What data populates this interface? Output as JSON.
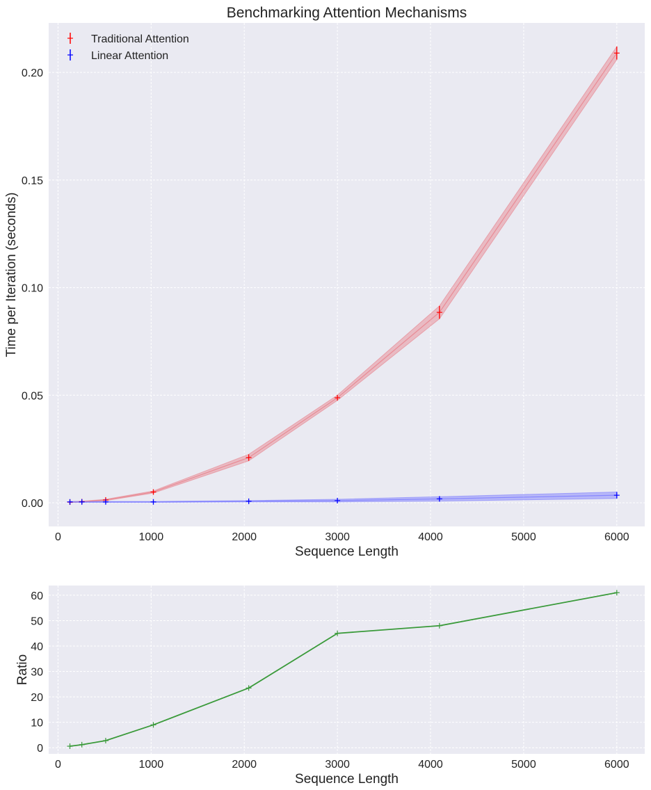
{
  "chart_data": [
    {
      "type": "line",
      "title": "Benchmarking Attention Mechanisms",
      "xlabel": "Sequence Length",
      "ylabel": "Time per Iteration (seconds)",
      "xlim": [
        -100,
        6300
      ],
      "ylim": [
        -0.011,
        0.223
      ],
      "x_ticks": [
        0,
        1000,
        2000,
        3000,
        4000,
        5000,
        6000
      ],
      "x_tick_labels": [
        "0",
        "1000",
        "2000",
        "3000",
        "4000",
        "5000",
        "6000"
      ],
      "y_ticks": [
        0.0,
        0.05,
        0.1,
        0.15,
        0.2
      ],
      "y_tick_labels": [
        "0.00",
        "0.05",
        "0.10",
        "0.15",
        "0.20"
      ],
      "grid": true,
      "legend_position": "top-left",
      "x": [
        128,
        256,
        512,
        1024,
        2048,
        3000,
        4096,
        6000
      ],
      "series": [
        {
          "name": "Traditional Attention",
          "color": "#ff0000",
          "band_color": "#e8808a",
          "values": [
            0.0003,
            0.0005,
            0.0013,
            0.005,
            0.021,
            0.0488,
            0.0885,
            0.209
          ],
          "errors": [
            0.0002,
            0.0002,
            0.0003,
            0.0005,
            0.0015,
            0.0012,
            0.003,
            0.003
          ]
        },
        {
          "name": "Linear Attention",
          "color": "#0000ff",
          "band_color": "#7b7bff",
          "values": [
            0.0004,
            0.0004,
            0.0004,
            0.0004,
            0.0007,
            0.001,
            0.0018,
            0.0035
          ],
          "errors": [
            0.0002,
            0.0002,
            0.0002,
            0.0002,
            0.0003,
            0.0006,
            0.001,
            0.0015
          ]
        }
      ]
    },
    {
      "type": "line",
      "title": "",
      "xlabel": "Sequence Length",
      "ylabel": "Ratio",
      "xlim": [
        -100,
        6300
      ],
      "ylim": [
        -2.4,
        63.8
      ],
      "x_ticks": [
        0,
        1000,
        2000,
        3000,
        4000,
        5000,
        6000
      ],
      "x_tick_labels": [
        "0",
        "1000",
        "2000",
        "3000",
        "4000",
        "5000",
        "6000"
      ],
      "y_ticks": [
        0,
        10,
        20,
        30,
        40,
        50,
        60
      ],
      "y_tick_labels": [
        "0",
        "10",
        "20",
        "30",
        "40",
        "50",
        "60"
      ],
      "grid": true,
      "x": [
        128,
        256,
        512,
        1024,
        2048,
        3000,
        4096,
        6000
      ],
      "series": [
        {
          "color": "#3a9a3a",
          "values": [
            0.6,
            1.2,
            2.8,
            9.0,
            23.5,
            45.0,
            48.0,
            61.0
          ]
        }
      ]
    }
  ]
}
